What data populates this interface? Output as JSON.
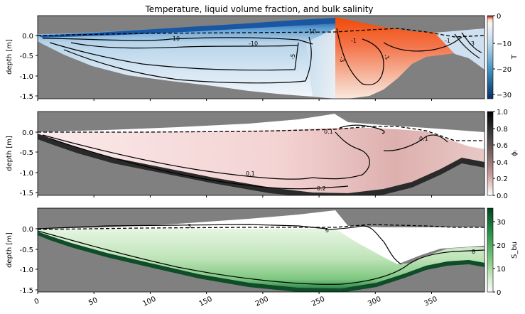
{
  "chart_data": {
    "type": "heatmap",
    "title": "Temperature, liquid volume fraction, and bulk salinity",
    "x": {
      "ticks": [
        0,
        50,
        100,
        150,
        200,
        250,
        300,
        350
      ],
      "tick_labels": [
        "0",
        "50",
        "100",
        "150",
        "200",
        "250",
        "300",
        "350"
      ],
      "range": [
        0,
        397
      ]
    },
    "panels": [
      {
        "id": "temperature",
        "ylabel": "depth [m]",
        "yticks": [
          "0.0",
          "-0.5",
          "-1.0",
          "-1.5"
        ],
        "ylim": [
          -1.55,
          0.45
        ],
        "colorbar": {
          "label": "T",
          "range": [
            -32,
            0
          ],
          "ticks": [
            "0",
            "−10",
            "−20",
            "−30"
          ],
          "colormap": "blue-white-red"
        },
        "contour_labels": [
          "-10",
          "-10",
          "-10",
          "-5",
          "-3",
          "-1",
          "-1",
          "-1",
          "-3"
        ]
      },
      {
        "id": "liquid_fraction",
        "ylabel": "depth [m]",
        "yticks": [
          "0.0",
          "-0.5",
          "-1.0",
          "-1.5"
        ],
        "ylim": [
          -1.55,
          0.45
        ],
        "colorbar": {
          "label": "ϕₗ",
          "range": [
            0,
            1
          ],
          "ticks": [
            "1.0",
            "0.8",
            "0.6",
            "0.4",
            "0.2",
            "0.0"
          ],
          "colormap": "white-pink-black"
        },
        "contour_labels": [
          "0.1",
          "0.1",
          "0.1",
          "0.2"
        ]
      },
      {
        "id": "bulk_salinity",
        "ylabel": "depth [m]",
        "yticks": [
          "0.0",
          "-0.5",
          "-1.0",
          "-1.5"
        ],
        "ylim": [
          -1.55,
          0.45
        ],
        "colorbar": {
          "label": "S_bu",
          "range": [
            0,
            34
          ],
          "ticks": [
            "30",
            "20",
            "10",
            "0"
          ],
          "colormap": "white-green"
        },
        "contour_labels": [
          "3",
          "5",
          "8"
        ]
      }
    ],
    "colors": {
      "background": "#808080",
      "cold": "#0d3f87",
      "warm": "#f04a06",
      "salinity": "#1b6b3a"
    }
  }
}
